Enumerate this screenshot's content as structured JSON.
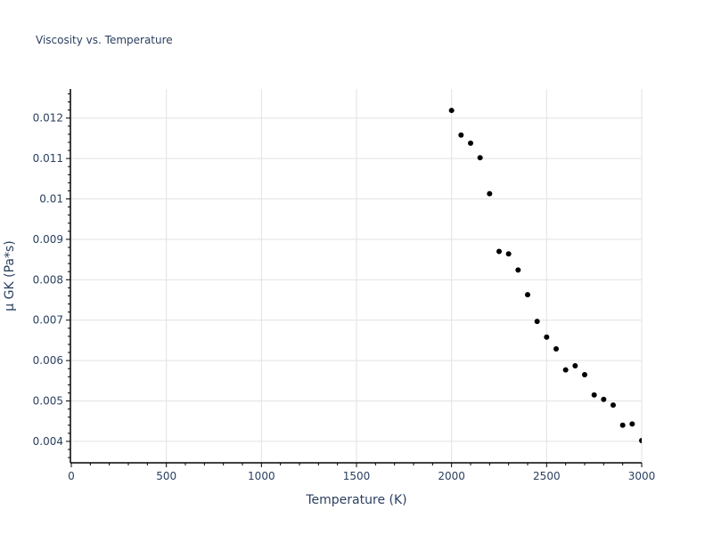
{
  "chart_data": {
    "type": "scatter",
    "title": "Viscosity vs. Temperature",
    "xlabel": "Temperature (K)",
    "ylabel": "μ GK (Pa*s)",
    "xlim": [
      0,
      3000
    ],
    "ylim": [
      0.00347,
      0.01272
    ],
    "grid": true,
    "legend": null,
    "x_ticks": [
      0,
      500,
      1000,
      1500,
      2000,
      2500,
      3000
    ],
    "x_tick_labels": [
      "0",
      "500",
      "1000",
      "1500",
      "2000",
      "2500",
      "3000"
    ],
    "y_ticks": [
      0.004,
      0.005,
      0.006,
      0.007,
      0.008,
      0.009,
      0.01,
      0.011,
      0.012
    ],
    "y_tick_labels": [
      "0.004",
      "0.005",
      "0.006",
      "0.007",
      "0.008",
      "0.009",
      "0.01",
      "0.011",
      "0.012"
    ],
    "marker_color": "#000000",
    "series": [
      {
        "name": "μ GK",
        "x": [
          2000,
          2050,
          2100,
          2150,
          2200,
          2250,
          2300,
          2350,
          2400,
          2450,
          2500,
          2550,
          2600,
          2650,
          2700,
          2750,
          2800,
          2850,
          2900,
          2950,
          3000
        ],
        "y": [
          0.01219,
          0.01158,
          0.01138,
          0.01102,
          0.01013,
          0.0087,
          0.00864,
          0.00824,
          0.00763,
          0.00697,
          0.00658,
          0.00629,
          0.00577,
          0.00587,
          0.00565,
          0.00515,
          0.00504,
          0.0049,
          0.0044,
          0.00443,
          0.00402
        ]
      }
    ]
  }
}
